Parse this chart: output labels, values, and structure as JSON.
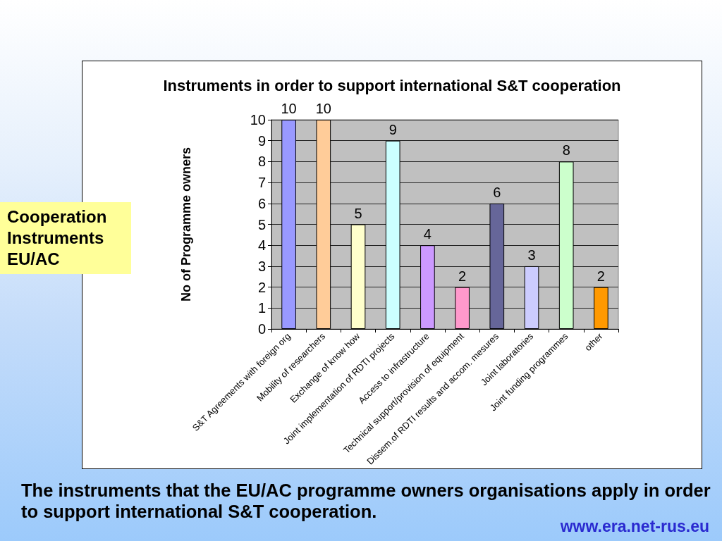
{
  "chart_data": {
    "type": "bar",
    "title": "Instruments in order to support international S&T cooperation",
    "ylabel": "No of Programme owners",
    "categories": [
      "S&T Agreements with foreign org",
      "Mobility of researchers",
      "Exchange of know how",
      "Joint implementation of RDTI projects",
      "Access to infrastructure",
      "Technical support/provision of equipment",
      "Dissem.of RDTI results and accom. mesures",
      "Joint laboratories",
      "Joint funding programmes",
      "other"
    ],
    "values": [
      10,
      10,
      5,
      9,
      4,
      2,
      6,
      3,
      8,
      2
    ],
    "colors": [
      "#9999ff",
      "#ffcc99",
      "#ffffcc",
      "#ccffff",
      "#cc99ff",
      "#ff99cc",
      "#666699",
      "#ccccff",
      "#ccffcc",
      "#ff9900"
    ],
    "ylim": [
      0,
      10
    ],
    "yticks": [
      0,
      1,
      2,
      3,
      4,
      5,
      6,
      7,
      8,
      9,
      10
    ],
    "grid": "y",
    "data_labels": true,
    "annotations": [
      "Cooperation Instruments EU/AC",
      "The instruments that the EU/AC programme owners organisations apply in order to support international S&T cooperation.",
      "www.era.net-rus.eu"
    ]
  }
}
